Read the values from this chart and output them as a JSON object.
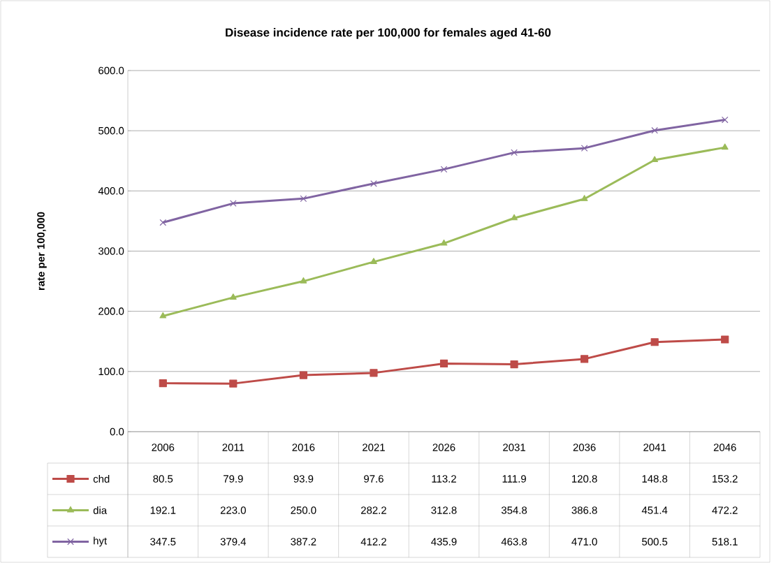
{
  "chart_data": {
    "type": "line",
    "title": "Disease incidence rate per 100,000 for females aged 41-60",
    "ylabel": "rate per 100,000",
    "categories": [
      "2006",
      "2011",
      "2016",
      "2021",
      "2026",
      "2031",
      "2036",
      "2041",
      "2046"
    ],
    "series": [
      {
        "name": "chd",
        "color": "#be4b48",
        "marker": "square",
        "values": [
          80.5,
          79.9,
          93.9,
          97.6,
          113.2,
          111.9,
          120.8,
          148.8,
          153.2
        ],
        "value_labels": [
          "80.5",
          "79.9",
          "93.9",
          "97.6",
          "113.2",
          "111.9",
          "120.8",
          "148.8",
          "153.2"
        ]
      },
      {
        "name": "dia",
        "color": "#9bbb59",
        "marker": "triangle",
        "values": [
          192.1,
          223.0,
          250.0,
          282.2,
          312.8,
          354.8,
          386.8,
          451.4,
          472.2
        ],
        "value_labels": [
          "192.1",
          "223.0",
          "250.0",
          "282.2",
          "312.8",
          "354.8",
          "386.8",
          "451.4",
          "472.2"
        ]
      },
      {
        "name": "hyt",
        "color": "#8064a2",
        "marker": "cross",
        "values": [
          347.5,
          379.4,
          387.2,
          412.2,
          435.9,
          463.8,
          471.0,
          500.5,
          518.1
        ],
        "value_labels": [
          "347.5",
          "379.4",
          "387.2",
          "412.2",
          "435.9",
          "463.8",
          "471.0",
          "500.5",
          "518.1"
        ]
      }
    ],
    "ylim": [
      0,
      600
    ],
    "yticks": [
      {
        "value": 0,
        "label": "0.0"
      },
      {
        "value": 100,
        "label": "100.0"
      },
      {
        "value": 200,
        "label": "200.0"
      },
      {
        "value": 300,
        "label": "300.0"
      },
      {
        "value": 400,
        "label": "400.0"
      },
      {
        "value": 500,
        "label": "500.0"
      },
      {
        "value": 600,
        "label": "600.0"
      }
    ],
    "grid": "y",
    "legend": "bottom",
    "line_style": "solid"
  }
}
